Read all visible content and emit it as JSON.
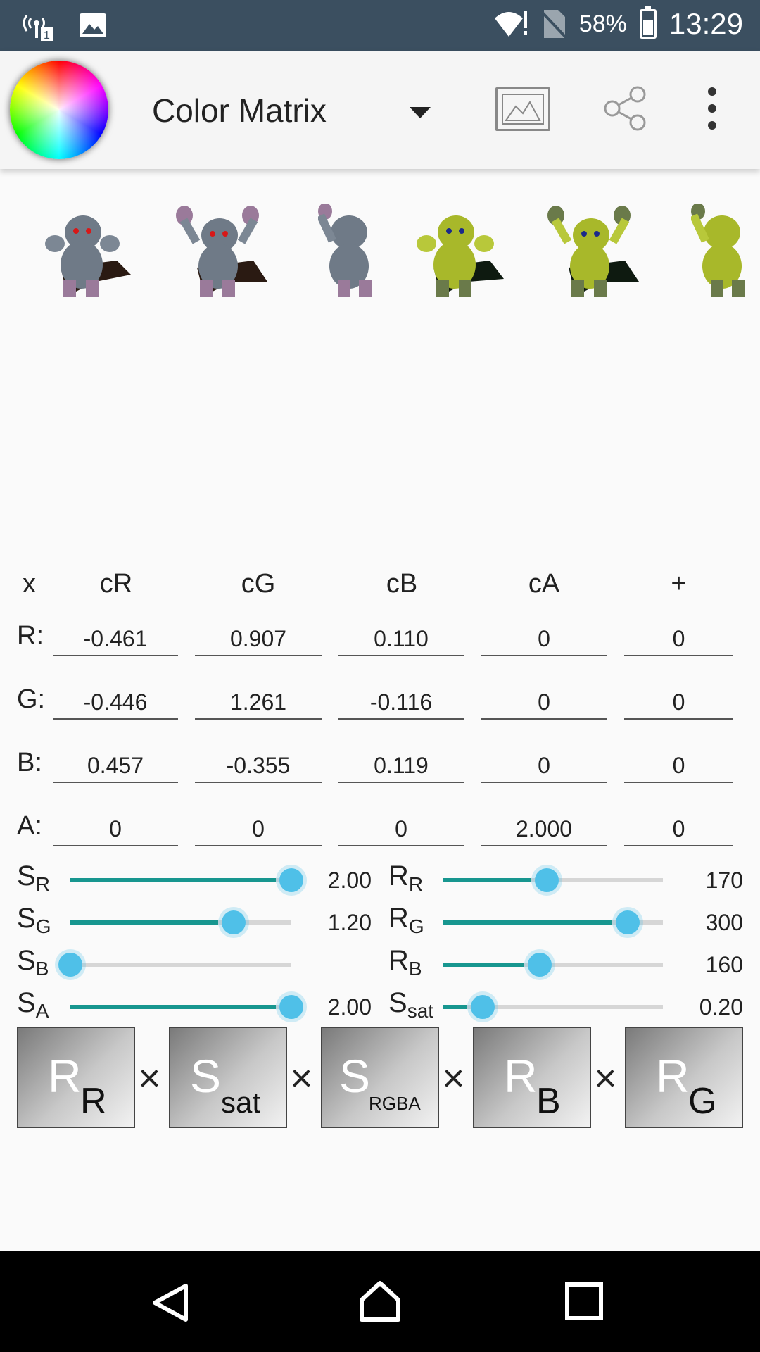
{
  "status_bar": {
    "battery_percent": "58%",
    "clock": "13:29",
    "icons": [
      "signal-icon",
      "image-notification-icon",
      "wifi-icon",
      "no-sim-icon",
      "battery-charging-icon"
    ]
  },
  "toolbar": {
    "title": "Color Matrix",
    "icons": [
      "color-wheel-icon",
      "dropdown-arrow-icon",
      "image-icon",
      "share-icon",
      "more-vert-icon"
    ]
  },
  "matrix": {
    "corner": "x",
    "columns": [
      "cR",
      "cG",
      "cB",
      "cA",
      "+"
    ],
    "rows": [
      {
        "label": "R:",
        "values": [
          "-0.461",
          "0.907",
          "0.110",
          "0",
          "0"
        ]
      },
      {
        "label": "G:",
        "values": [
          "-0.446",
          "1.261",
          "-0.116",
          "0",
          "0"
        ]
      },
      {
        "label": "B:",
        "values": [
          "0.457",
          "-0.355",
          "0.119",
          "0",
          "0"
        ]
      },
      {
        "label": "A:",
        "values": [
          "0",
          "0",
          "0",
          "2.000",
          "0"
        ]
      }
    ]
  },
  "sliders_left": [
    {
      "base": "S",
      "sub": "R",
      "value": "2.00",
      "fraction": 1.0
    },
    {
      "base": "S",
      "sub": "G",
      "value": "1.20",
      "fraction": 0.74
    },
    {
      "base": "S",
      "sub": "B",
      "value": "",
      "fraction": 0.0
    },
    {
      "base": "S",
      "sub": "A",
      "value": "2.00",
      "fraction": 1.0
    }
  ],
  "sliders_right": [
    {
      "base": "R",
      "sub": "R",
      "value": "170",
      "fraction": 0.47
    },
    {
      "base": "R",
      "sub": "G",
      "value": "300",
      "fraction": 0.84
    },
    {
      "base": "R",
      "sub": "B",
      "value": "160",
      "fraction": 0.44
    },
    {
      "base": "S",
      "sub": "sat",
      "value": "0.20",
      "fraction": 0.18
    }
  ],
  "chain": {
    "tiles": [
      {
        "base": "R",
        "sub": "R"
      },
      {
        "base": "S",
        "sub": "sat"
      },
      {
        "base": "S",
        "sub": "RGBA"
      },
      {
        "base": "R",
        "sub": "B"
      },
      {
        "base": "R",
        "sub": "G"
      }
    ],
    "operator": "×"
  },
  "nav_bar": {
    "icons": [
      "back-icon",
      "home-icon",
      "recents-icon"
    ]
  },
  "colors": {
    "status_bar": "#3b4f60",
    "slider_fill": "#17968f",
    "slider_thumb": "#4fc0e8",
    "sprite_grey": "#6f7a87",
    "sprite_yellow": "#a8b82a"
  }
}
